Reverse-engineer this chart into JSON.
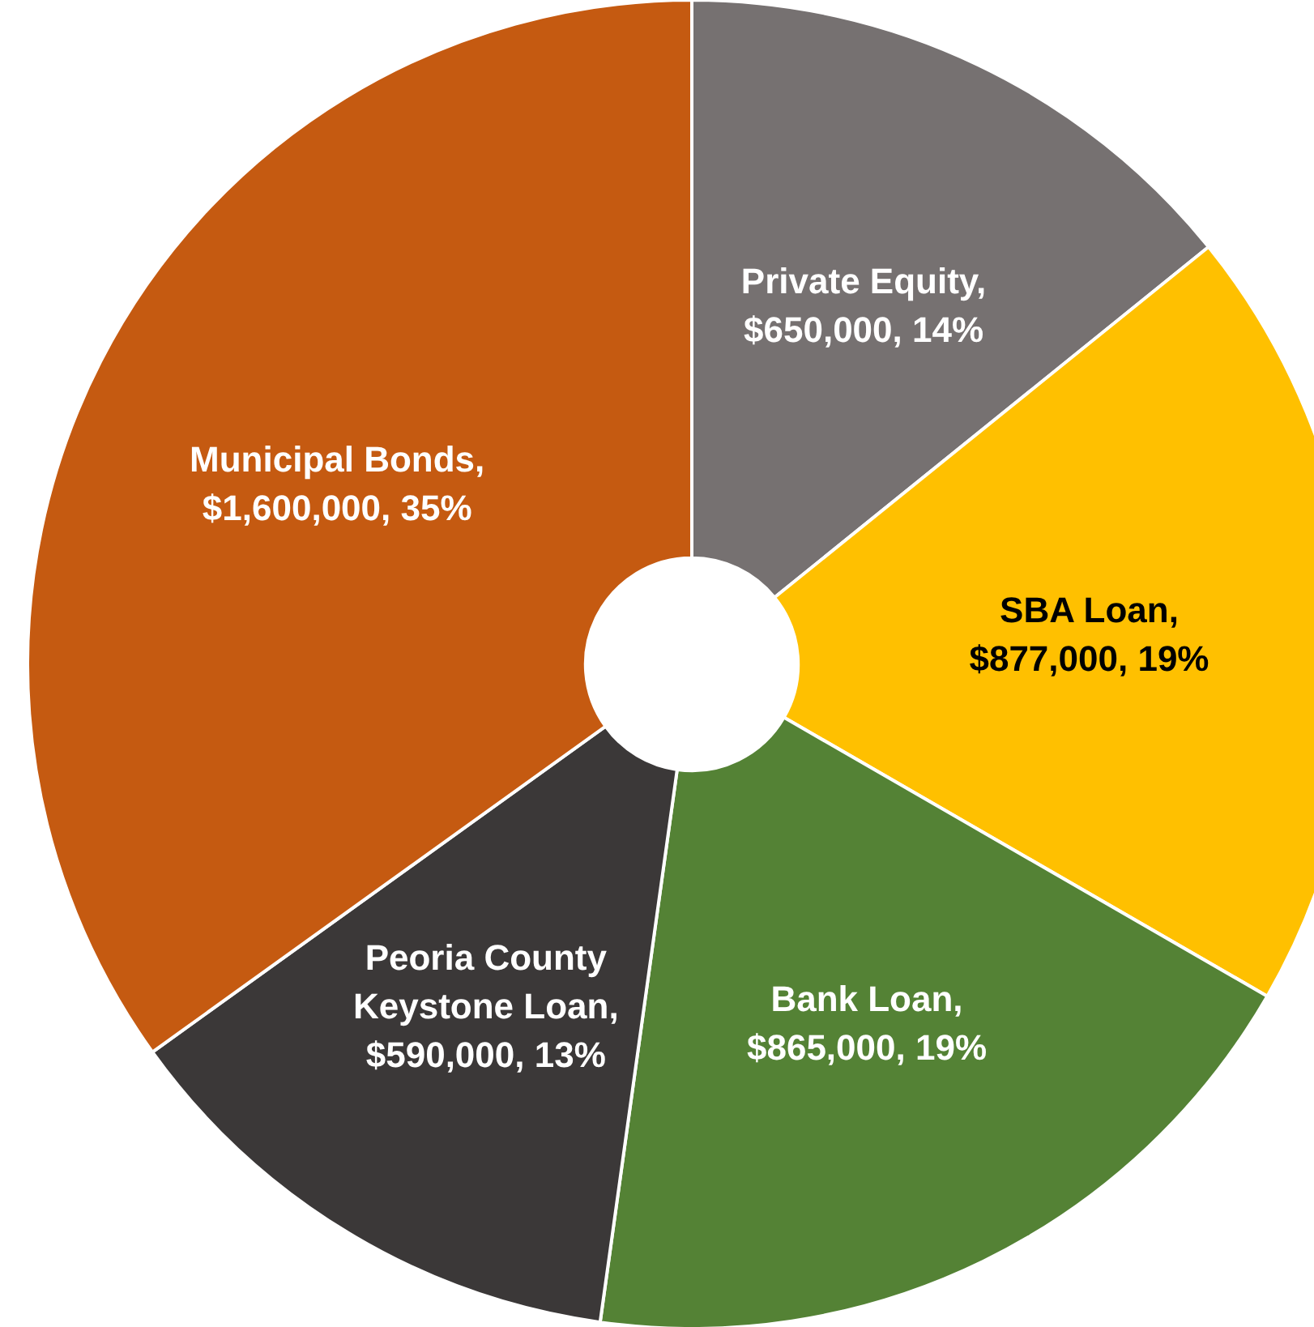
{
  "chart_data": {
    "type": "donut",
    "categories": [
      "Private Equity",
      "SBA Loan",
      "Bank Loan",
      "Peoria County Keystone Loan",
      "Municipal Bonds"
    ],
    "values": [
      650000,
      877000,
      865000,
      590000,
      1600000
    ],
    "colors": [
      "#767171",
      "#ffc000",
      "#548235",
      "#3b3838",
      "#c55a11"
    ],
    "value_labels": [
      ", $650,000, 14%",
      ", $877,000, 19%",
      ", $865,000, 19%",
      ", $590,000, 13%",
      ", $1,600,000, 35%"
    ]
  }
}
